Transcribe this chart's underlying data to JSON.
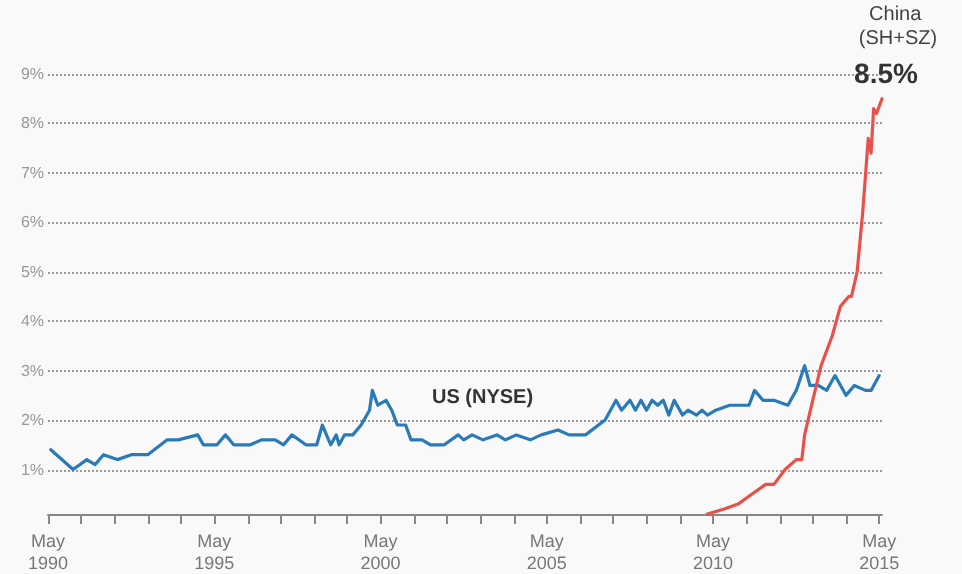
{
  "chart_data": {
    "type": "line",
    "x": [
      "1990-06",
      "1991-02",
      "1991-07",
      "1991-10",
      "1992-01",
      "1992-06",
      "1992-11",
      "1993-05",
      "1993-12",
      "1994-04",
      "1994-11",
      "1995-01",
      "1995-06",
      "1995-09",
      "1995-12",
      "1996-06",
      "1996-10",
      "1997-01",
      "1997-03",
      "1997-06",
      "1997-09",
      "1998-02",
      "1998-06",
      "1998-08",
      "1998-11",
      "1999-01",
      "1999-02",
      "1999-04",
      "1999-07",
      "1999-10",
      "2000-01",
      "2000-02",
      "2000-04",
      "2000-07",
      "2000-09",
      "2000-11",
      "2001-02",
      "2001-04",
      "2001-08",
      "2001-11",
      "2002-04",
      "2002-09",
      "2002-11",
      "2003-02",
      "2003-06",
      "2003-11",
      "2004-02",
      "2004-06",
      "2004-11",
      "2005-03",
      "2005-09",
      "2006-01",
      "2006-07",
      "2007-02",
      "2007-06",
      "2007-08",
      "2007-11",
      "2008-01",
      "2008-03",
      "2008-05",
      "2008-07",
      "2008-09",
      "2008-11",
      "2009-01",
      "2009-03",
      "2009-06",
      "2009-08",
      "2009-11",
      "2010-01",
      "2010-03",
      "2010-06",
      "2010-11",
      "2011-06",
      "2011-08",
      "2011-11",
      "2012-03",
      "2012-08",
      "2012-11",
      "2013-02",
      "2013-04",
      "2013-07",
      "2013-10",
      "2014-01",
      "2014-05",
      "2014-08",
      "2014-12",
      "2015-02",
      "2015-05"
    ],
    "series": [
      {
        "color": "#2a7ab8",
        "values": [
          1.4,
          1.0,
          1.2,
          1.1,
          1.3,
          1.2,
          1.3,
          1.3,
          1.6,
          1.6,
          1.7,
          1.5,
          1.5,
          1.7,
          1.5,
          1.5,
          1.6,
          1.6,
          1.6,
          1.5,
          1.7,
          1.5,
          1.5,
          1.9,
          1.5,
          1.7,
          1.5,
          1.7,
          1.7,
          1.9,
          2.2,
          2.6,
          2.3,
          2.4,
          2.2,
          1.9,
          1.9,
          1.6,
          1.6,
          1.5,
          1.5,
          1.7,
          1.6,
          1.7,
          1.6,
          1.7,
          1.6,
          1.7,
          1.6,
          1.7,
          1.8,
          1.7,
          1.7,
          2.0,
          2.4,
          2.2,
          2.4,
          2.2,
          2.4,
          2.2,
          2.4,
          2.3,
          2.4,
          2.1,
          2.4,
          2.1,
          2.2,
          2.1,
          2.2,
          2.1,
          2.2,
          2.3,
          2.3,
          2.6,
          2.4,
          2.4,
          2.3,
          2.6,
          3.1,
          2.7,
          2.7,
          2.6,
          2.9,
          2.5,
          2.7,
          2.6,
          2.6,
          2.9
        ]
      },
      {
        "name": "China (SH+SZ)",
        "color": "#e8514a",
        "x": [
          "2010-03",
          "2010-09",
          "2011-02",
          "2011-07",
          "2011-12",
          "2012-03",
          "2012-07",
          "2012-11",
          "2013-01",
          "2013-02",
          "2013-05",
          "2013-08",
          "2013-12",
          "2014-03",
          "2014-06",
          "2014-07",
          "2014-09",
          "2014-11",
          "2015-01",
          "2015-02",
          "2015-03",
          "2015-04",
          "2015-06"
        ],
        "values": [
          0.1,
          0.2,
          0.3,
          0.5,
          0.7,
          0.7,
          1.0,
          1.2,
          1.2,
          1.7,
          2.4,
          3.1,
          3.7,
          4.3,
          4.5,
          4.5,
          5.0,
          6.2,
          7.7,
          7.4,
          8.3,
          8.2,
          8.5
        ],
        "value_labels": [
          null,
          null,
          null,
          null,
          null,
          null,
          null,
          null,
          null,
          null,
          null,
          null,
          null,
          null,
          null,
          null,
          null,
          null,
          null,
          null,
          null,
          null,
          "8.5%"
        ]
      }
    ],
    "annotations": [
      "US (NYSE)"
    ],
    "xlim": [
      "1990-05",
      "2015-06"
    ],
    "xticks": [
      {
        "value": "1990-05",
        "label": "May\n1990"
      },
      {
        "value": "1991-05",
        "label": null
      },
      {
        "value": "1992-05",
        "label": null
      },
      {
        "value": "1993-05",
        "label": null
      },
      {
        "value": "1994-05",
        "label": null
      },
      {
        "value": "1995-05",
        "label": "May\n1995"
      },
      {
        "value": "1996-05",
        "label": null
      },
      {
        "value": "1997-05",
        "label": null
      },
      {
        "value": "1998-05",
        "label": null
      },
      {
        "value": "1999-05",
        "label": null
      },
      {
        "value": "2000-05",
        "label": "May\n2000"
      },
      {
        "value": "2001-05",
        "label": null
      },
      {
        "value": "2002-05",
        "label": null
      },
      {
        "value": "2003-05",
        "label": null
      },
      {
        "value": "2004-05",
        "label": null
      },
      {
        "value": "2005-05",
        "label": "May\n2005"
      },
      {
        "value": "2006-05",
        "label": null
      },
      {
        "value": "2007-05",
        "label": null
      },
      {
        "value": "2008-05",
        "label": null
      },
      {
        "value": "2009-05",
        "label": null
      },
      {
        "value": "2010-05",
        "label": "May\n2010"
      },
      {
        "value": "2011-05",
        "label": null
      },
      {
        "value": "2012-05",
        "label": null
      },
      {
        "value": "2013-05",
        "label": null
      },
      {
        "value": "2014-05",
        "label": null
      },
      {
        "value": "2015-05",
        "label": "May\n2015"
      }
    ],
    "ylim": [
      0.1,
      9
    ],
    "yticks": [
      {
        "value": 1,
        "label": "1%"
      },
      {
        "value": 2,
        "label": "2%"
      },
      {
        "value": 3,
        "label": "3%"
      },
      {
        "value": 4,
        "label": "4%"
      },
      {
        "value": 5,
        "label": "5%"
      },
      {
        "value": 6,
        "label": "6%"
      },
      {
        "value": 7,
        "label": "7%"
      },
      {
        "value": 8,
        "label": "8%"
      },
      {
        "value": 9,
        "label": "9%"
      }
    ],
    "grid": "y",
    "legend": false,
    "marker": "none",
    "line_style": "solid"
  }
}
